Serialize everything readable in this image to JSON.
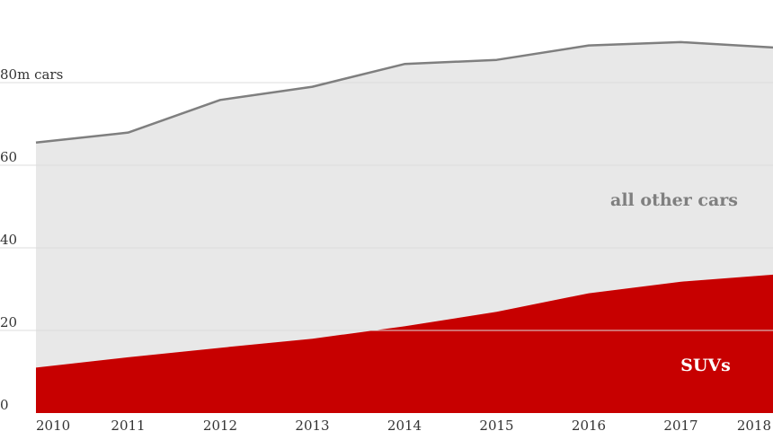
{
  "chart_data": {
    "type": "area",
    "x": [
      "2010",
      "2011",
      "2012",
      "2013",
      "2014",
      "2015",
      "2016",
      "2017",
      "2018"
    ],
    "series": [
      {
        "name": "SUVs",
        "values": [
          11,
          13.5,
          15.8,
          18,
          21,
          24.5,
          29,
          31.8,
          33.5
        ],
        "color": "#c70000"
      },
      {
        "name": "all other cars",
        "values": [
          54.5,
          54.4,
          60,
          61,
          63.5,
          61,
          60,
          58,
          55
        ],
        "color": "#e8e8e8"
      }
    ],
    "total_line": {
      "values": [
        65.5,
        67.9,
        75.8,
        79,
        84.5,
        85.5,
        89,
        89.8,
        88.5
      ],
      "color": "#7f7f7f"
    },
    "y_ticks": [
      "0",
      "20",
      "40",
      "60",
      "80m cars"
    ],
    "y_tick_values": [
      0,
      20,
      40,
      60,
      80
    ],
    "ylim": [
      0,
      90
    ],
    "grid": true,
    "title": "",
    "xlabel": "",
    "ylabel": ""
  }
}
